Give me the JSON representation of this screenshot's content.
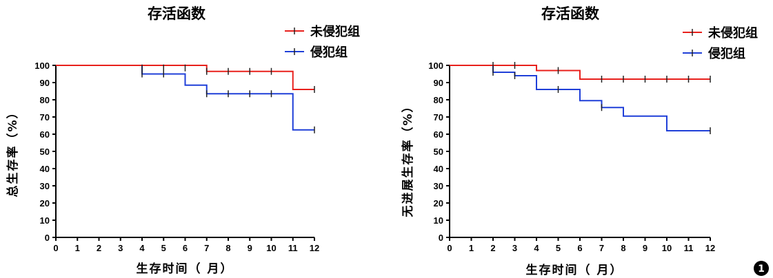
{
  "badge": {
    "label": "1"
  },
  "chart_data": [
    {
      "type": "line",
      "step": true,
      "title": "存活函数",
      "xlabel": "生存时间（ 月）",
      "ylabel": "总生存率（%）",
      "xlim": [
        0,
        12
      ],
      "ylim": [
        0,
        100
      ],
      "xticks": [
        "0",
        "1",
        "2",
        "3",
        "4",
        "5",
        "6",
        "7",
        "8",
        "9",
        "10",
        "11",
        "12"
      ],
      "yticks": [
        "0",
        "10",
        "20",
        "30",
        "40",
        "50",
        "60",
        "70",
        "80",
        "90",
        "100"
      ],
      "grid": false,
      "legend": "top-right",
      "series": [
        {
          "name": "未侵犯组",
          "color": "#e8201c",
          "x": [
            0,
            7,
            11,
            12
          ],
          "y": [
            100,
            96.5,
            86,
            86
          ],
          "censor_x": [
            4,
            5,
            6,
            7,
            8,
            9,
            10,
            12
          ],
          "censor_y": [
            98.5,
            98.5,
            98.5,
            96.5,
            96.5,
            96.5,
            96.5,
            86
          ]
        },
        {
          "name": "侵犯组",
          "color": "#1f3fd8",
          "start_x": 4,
          "x": [
            4,
            6,
            7,
            11,
            12
          ],
          "y": [
            95,
            88.5,
            83.5,
            62.5,
            62.5
          ],
          "censor_x": [
            4,
            5,
            7,
            8,
            9,
            10,
            12
          ],
          "censor_y": [
            95,
            95,
            83.5,
            83.5,
            83.5,
            83.5,
            62.5
          ]
        }
      ]
    },
    {
      "type": "line",
      "step": true,
      "title": "存活函数",
      "xlabel": "生存时间（ 月）",
      "ylabel": "无进展生存率（%）",
      "xlim": [
        0,
        12
      ],
      "ylim": [
        0,
        100
      ],
      "xticks": [
        "0",
        "1",
        "2",
        "3",
        "4",
        "5",
        "6",
        "7",
        "8",
        "9",
        "10",
        "11",
        "12"
      ],
      "yticks": [
        "0",
        "10",
        "20",
        "30",
        "40",
        "50",
        "60",
        "70",
        "80",
        "90",
        "100"
      ],
      "grid": false,
      "legend": "top-right",
      "series": [
        {
          "name": "未侵犯组",
          "color": "#e8201c",
          "x": [
            0,
            4,
            6,
            12
          ],
          "y": [
            100,
            97,
            92,
            92
          ],
          "censor_x": [
            2,
            3,
            5,
            7,
            8,
            9,
            10,
            11,
            12
          ],
          "censor_y": [
            100,
            100,
            97,
            92,
            92,
            92,
            92,
            92,
            92
          ]
        },
        {
          "name": "侵犯组",
          "color": "#1f3fd8",
          "start_x": 2,
          "x": [
            2,
            3,
            4,
            6,
            7,
            8,
            10,
            12
          ],
          "y": [
            96,
            94,
            86,
            79.5,
            75.5,
            70.5,
            62,
            62
          ],
          "censor_x": [
            2,
            3,
            5,
            7,
            12
          ],
          "censor_y": [
            96,
            94,
            86,
            75.5,
            62
          ]
        }
      ]
    }
  ]
}
